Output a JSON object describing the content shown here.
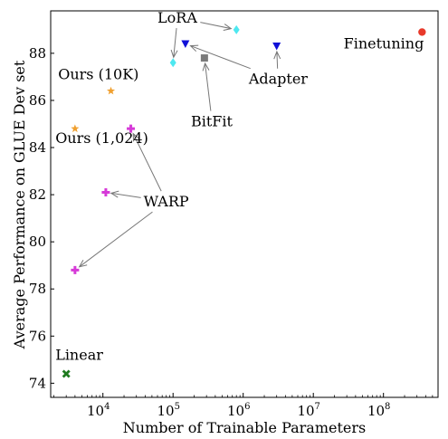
{
  "chart_data": {
    "type": "scatter",
    "title": "",
    "xlabel": "Number of Trainable Parameters",
    "ylabel": "Average Performance on GLUE Dev set",
    "xscale": "log",
    "xlim": [
      1800,
      600000000
    ],
    "ylim": [
      73.4,
      89.8
    ],
    "x_ticks": [
      {
        "value": 10000,
        "base": "10",
        "exp": "4"
      },
      {
        "value": 100000,
        "base": "10",
        "exp": "5"
      },
      {
        "value": 1000000,
        "base": "10",
        "exp": "6"
      },
      {
        "value": 10000000,
        "base": "10",
        "exp": "7"
      },
      {
        "value": 100000000,
        "base": "10",
        "exp": "8"
      }
    ],
    "y_ticks": [
      74,
      76,
      78,
      80,
      82,
      84,
      86,
      88
    ],
    "grid": false,
    "points": [
      {
        "id": "finetuning",
        "method": "Finetuning",
        "x": 355000000,
        "y": 88.9,
        "marker": "circle",
        "color": "#e8392a"
      },
      {
        "id": "lora-1",
        "method": "LoRA",
        "x": 100000,
        "y": 87.6,
        "marker": "diamond",
        "color": "#4ee8f0"
      },
      {
        "id": "lora-2",
        "method": "LoRA",
        "x": 800000,
        "y": 89.0,
        "marker": "diamond",
        "color": "#4ee8f0"
      },
      {
        "id": "adapter-1",
        "method": "Adapter",
        "x": 150000,
        "y": 88.4,
        "marker": "triangle-down",
        "color": "#1010d8"
      },
      {
        "id": "adapter-2",
        "method": "Adapter",
        "x": 3000000,
        "y": 88.3,
        "marker": "triangle-down",
        "color": "#1010d8"
      },
      {
        "id": "bitfit",
        "method": "BitFit",
        "x": 280000,
        "y": 87.8,
        "marker": "square",
        "color": "#7a7a7a"
      },
      {
        "id": "ours-10k",
        "method": "Ours (10K)",
        "x": 13000,
        "y": 86.4,
        "marker": "star",
        "color": "#f0a030"
      },
      {
        "id": "ours-1024",
        "method": "Ours (1,024)",
        "x": 4000,
        "y": 84.8,
        "marker": "star",
        "color": "#f0a030"
      },
      {
        "id": "warp-1",
        "method": "WARP",
        "x": 25000,
        "y": 84.8,
        "marker": "plus",
        "color": "#d63ad8"
      },
      {
        "id": "warp-2",
        "method": "WARP",
        "x": 11000,
        "y": 82.1,
        "marker": "plus",
        "color": "#d63ad8"
      },
      {
        "id": "warp-3",
        "method": "WARP",
        "x": 4000,
        "y": 78.8,
        "marker": "plus",
        "color": "#d63ad8"
      },
      {
        "id": "linear",
        "method": "Linear",
        "x": 3000,
        "y": 74.4,
        "marker": "x",
        "color": "#1e7a1e"
      }
    ],
    "annotations": [
      {
        "text": "LoRA",
        "text_at": [
          60000,
          89.3
        ],
        "arrows_to": [
          "lora-1",
          "lora-2"
        ]
      },
      {
        "text": "Adapter",
        "text_at": [
          1200000,
          86.7
        ],
        "arrows_to": [
          "adapter-1",
          "adapter-2"
        ]
      },
      {
        "text": "BitFit",
        "text_at": [
          180000,
          84.9
        ],
        "arrows_to": [
          "bitfit"
        ]
      },
      {
        "text": "Finetuning",
        "text_at": [
          27000000,
          88.2
        ],
        "arrows_to": []
      },
      {
        "text": "Ours (10K)",
        "text_at": [
          2300,
          86.9
        ],
        "arrows_to": []
      },
      {
        "text": "Ours (1,024)",
        "text_at": [
          2100,
          84.2
        ],
        "arrows_to": []
      },
      {
        "text": "WARP",
        "text_at": [
          38000,
          81.5
        ],
        "arrows_to": [
          "warp-1",
          "warp-2",
          "warp-3"
        ]
      },
      {
        "text": "Linear",
        "text_at": [
          2100,
          75.0
        ],
        "arrows_to": []
      }
    ]
  }
}
